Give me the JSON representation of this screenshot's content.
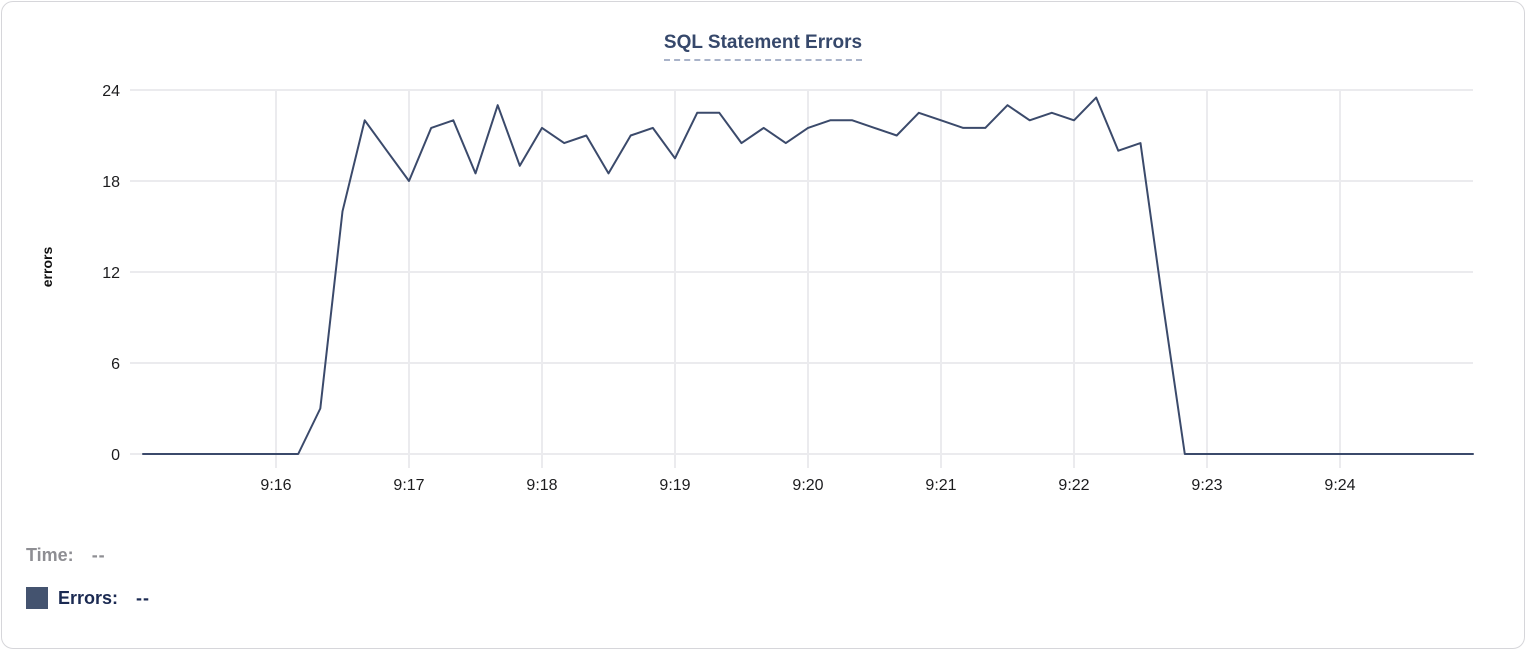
{
  "chart": {
    "title": "SQL Statement Errors",
    "y_axis_label": "errors",
    "colors": {
      "line": "#3b4a6b",
      "grid": "#ebebee",
      "tick_label": "#1c1c1e",
      "title": "#36486b",
      "title_underline": "#a9b3c9",
      "legend_time": "#8e8e93",
      "legend_errors": "#1b2a52",
      "swatch": "#44536f",
      "card_border": "#d6d6da"
    }
  },
  "legend": {
    "rows": [
      {
        "label": "Time:",
        "value": "--"
      },
      {
        "label": "Errors:",
        "value": "--"
      }
    ]
  },
  "chart_data": {
    "type": "line",
    "title": "SQL Statement Errors",
    "xlabel": "",
    "ylabel": "errors",
    "x_range": [
      "9:15:00",
      "9:25:00"
    ],
    "x_ticks": [
      "9:16",
      "9:17",
      "9:18",
      "9:19",
      "9:20",
      "9:21",
      "9:22",
      "9:23",
      "9:24"
    ],
    "y_ticks": [
      0,
      6,
      12,
      18,
      24
    ],
    "ylim": [
      0,
      24
    ],
    "grid": true,
    "legend_position": "bottom",
    "series": [
      {
        "name": "Errors",
        "color": "#3b4a6b",
        "x": [
          "9:15:00",
          "9:15:10",
          "9:15:20",
          "9:15:30",
          "9:15:40",
          "9:15:50",
          "9:16:00",
          "9:16:10",
          "9:16:20",
          "9:16:30",
          "9:16:40",
          "9:16:50",
          "9:17:00",
          "9:17:10",
          "9:17:20",
          "9:17:30",
          "9:17:40",
          "9:17:50",
          "9:18:00",
          "9:18:10",
          "9:18:20",
          "9:18:30",
          "9:18:40",
          "9:18:50",
          "9:19:00",
          "9:19:10",
          "9:19:20",
          "9:19:30",
          "9:19:40",
          "9:19:50",
          "9:20:00",
          "9:20:10",
          "9:20:20",
          "9:20:30",
          "9:20:40",
          "9:20:50",
          "9:21:00",
          "9:21:10",
          "9:21:20",
          "9:21:30",
          "9:21:40",
          "9:21:50",
          "9:22:00",
          "9:22:10",
          "9:22:20",
          "9:22:30",
          "9:22:40",
          "9:22:50",
          "9:23:00",
          "9:23:10",
          "9:23:20",
          "9:23:30",
          "9:23:40",
          "9:23:50",
          "9:24:00",
          "9:24:10",
          "9:24:20",
          "9:24:30",
          "9:24:40",
          "9:24:50",
          "9:25:00"
        ],
        "values": [
          0,
          0,
          0,
          0,
          0,
          0,
          0,
          0,
          3,
          16,
          22,
          20,
          18,
          21.5,
          22,
          18.5,
          23,
          19,
          21.5,
          20.5,
          21,
          18.5,
          21,
          21.5,
          19.5,
          22.5,
          22.5,
          20.5,
          21.5,
          20.5,
          21.5,
          22,
          22,
          21.5,
          21,
          22.5,
          22,
          21.5,
          21.5,
          23,
          22,
          22.5,
          22,
          23.5,
          20,
          20.5,
          10,
          0,
          0,
          0,
          0,
          0,
          0,
          0,
          0,
          0,
          0,
          0,
          0,
          0,
          0
        ]
      }
    ]
  }
}
